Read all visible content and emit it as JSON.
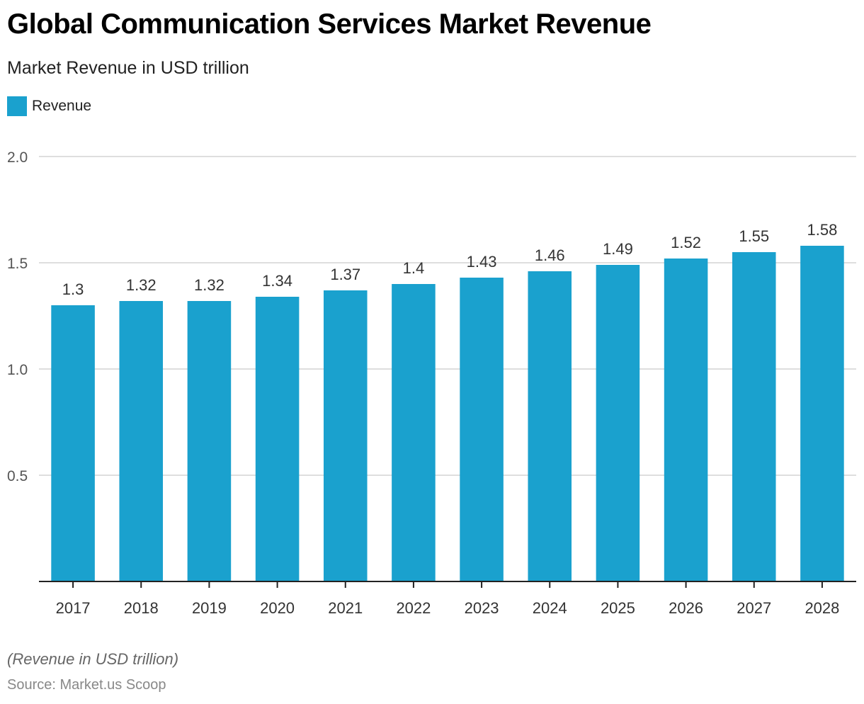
{
  "title": "Global Communication Services Market Revenue",
  "subtitle": "Market Revenue in USD trillion",
  "legend": {
    "label": "Revenue",
    "color": "#1aa1ce"
  },
  "footer": {
    "note": "(Revenue in USD trillion)",
    "source": "Source: Market.us Scoop"
  },
  "chart_data": {
    "type": "bar",
    "title": "Global Communication Services Market Revenue",
    "subtitle": "Market Revenue in USD trillion",
    "xlabel": "",
    "ylabel": "",
    "categories": [
      "2017",
      "2018",
      "2019",
      "2020",
      "2021",
      "2022",
      "2023",
      "2024",
      "2025",
      "2026",
      "2027",
      "2028"
    ],
    "series": [
      {
        "name": "Revenue",
        "color": "#1aa1ce",
        "values": [
          1.3,
          1.32,
          1.32,
          1.34,
          1.37,
          1.4,
          1.43,
          1.46,
          1.49,
          1.52,
          1.55,
          1.58
        ]
      }
    ],
    "data_labels": [
      "1.3",
      "1.32",
      "1.32",
      "1.34",
      "1.37",
      "1.4",
      "1.43",
      "1.46",
      "1.49",
      "1.52",
      "1.55",
      "1.58"
    ],
    "ylim": [
      0,
      2.0
    ],
    "yticks": [
      0.5,
      1.0,
      1.5,
      2.0
    ],
    "ytick_labels": [
      "0.5",
      "1.0",
      "1.5",
      "2.0"
    ],
    "grid": true,
    "legend_position": "top-left"
  }
}
